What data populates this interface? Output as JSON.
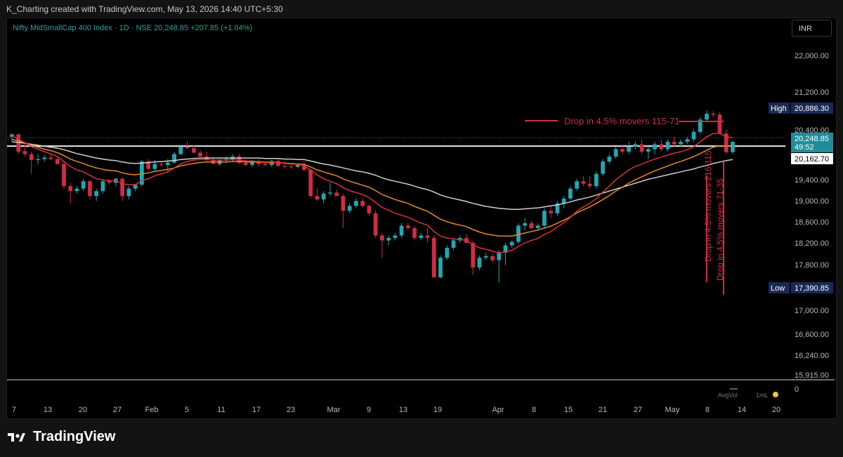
{
  "header": {
    "text": "K_Charting created with TradingView.com, May 13, 2026 14:40 UTC+5:30"
  },
  "symbol_line": "Nifty MidSmallCap 400 Index · 1D · NSE  20,248.85  +207.85 (+1.04%)",
  "currency": "INR",
  "brand": "TradingView",
  "colors": {
    "up": "#22a7b4",
    "down": "#d12c45",
    "background": "#000000",
    "ema_fast": "#d9303c",
    "ema_mid": "#e08a2b",
    "ema_slow": "#cfcfcf",
    "annotation": "#d12c45"
  },
  "chart_data": {
    "type": "candlestick",
    "y_ticks": [
      "22,000.00",
      "21,200.00",
      "20,400.00",
      "19,400.00",
      "19,000.00",
      "18,600.00",
      "18,200.00",
      "17,800.00",
      "17,000.00",
      "16,600.00",
      "16,240.00",
      "15,915.00"
    ],
    "x_ticks": [
      "7",
      "13",
      "20",
      "27",
      "Feb",
      "5",
      "11",
      "17",
      "23",
      "Mar",
      "9",
      "13",
      "19",
      "Apr",
      "8",
      "15",
      "21",
      "27",
      "May",
      "8",
      "14",
      "20"
    ],
    "month_ticks": [
      "Feb",
      "Mar",
      "Apr",
      "May"
    ],
    "volume_pane": {
      "avgvol_label": "AvgVol ·",
      "value_label": "1mL",
      "zero_label": "0"
    },
    "price_labels": [
      {
        "name": "high",
        "tag": "High",
        "value": "20,886.30",
        "style": "navy"
      },
      {
        "name": "last",
        "tag": "",
        "value": "20,248.85",
        "sub": "49:52",
        "style": "teal"
      },
      {
        "name": "level",
        "tag": "",
        "value": "20,162.70",
        "style": "white"
      },
      {
        "name": "low",
        "tag": "Low",
        "value": "17,390.85",
        "style": "navy"
      }
    ],
    "horizontal_level": 20162.7,
    "annotations": [
      {
        "text": "Drop in 4.5% movers 115-71"
      },
      {
        "text": "Drop in 4.5% movers 216-115"
      },
      {
        "text": "Drop in 4.5% movers 71-35"
      }
    ],
    "candles": [
      {
        "o": 20350,
        "h": 20420,
        "l": 20250,
        "c": 20400
      },
      {
        "o": 20400,
        "h": 20420,
        "l": 20000,
        "c": 20050
      },
      {
        "o": 20060,
        "h": 20200,
        "l": 19950,
        "c": 20000
      },
      {
        "o": 20000,
        "h": 20050,
        "l": 19600,
        "c": 19880
      },
      {
        "o": 19880,
        "h": 20000,
        "l": 19800,
        "c": 19900
      },
      {
        "o": 19900,
        "h": 19980,
        "l": 19850,
        "c": 19930
      },
      {
        "o": 19930,
        "h": 20000,
        "l": 19880,
        "c": 19900
      },
      {
        "o": 19900,
        "h": 19950,
        "l": 19780,
        "c": 19800
      },
      {
        "o": 19800,
        "h": 19850,
        "l": 19300,
        "c": 19350
      },
      {
        "o": 19350,
        "h": 19420,
        "l": 19000,
        "c": 19250
      },
      {
        "o": 19250,
        "h": 19350,
        "l": 19200,
        "c": 19300
      },
      {
        "o": 19300,
        "h": 19500,
        "l": 19250,
        "c": 19450
      },
      {
        "o": 19450,
        "h": 19480,
        "l": 19100,
        "c": 19150
      },
      {
        "o": 19150,
        "h": 19300,
        "l": 19050,
        "c": 19250
      },
      {
        "o": 19250,
        "h": 19480,
        "l": 19200,
        "c": 19450
      },
      {
        "o": 19450,
        "h": 19500,
        "l": 19380,
        "c": 19420
      },
      {
        "o": 19420,
        "h": 19520,
        "l": 19350,
        "c": 19500
      },
      {
        "o": 19500,
        "h": 19530,
        "l": 19050,
        "c": 19150
      },
      {
        "o": 19150,
        "h": 19350,
        "l": 19080,
        "c": 19300
      },
      {
        "o": 19300,
        "h": 19400,
        "l": 19250,
        "c": 19380
      },
      {
        "o": 19380,
        "h": 19880,
        "l": 19350,
        "c": 19850
      },
      {
        "o": 19850,
        "h": 19900,
        "l": 19680,
        "c": 19700
      },
      {
        "o": 19700,
        "h": 19880,
        "l": 19650,
        "c": 19800
      },
      {
        "o": 19800,
        "h": 19850,
        "l": 19750,
        "c": 19780
      },
      {
        "o": 19780,
        "h": 19900,
        "l": 19620,
        "c": 19830
      },
      {
        "o": 19830,
        "h": 20050,
        "l": 19800,
        "c": 20000
      },
      {
        "o": 20000,
        "h": 20180,
        "l": 19980,
        "c": 20150
      },
      {
        "o": 20150,
        "h": 20250,
        "l": 20100,
        "c": 20120
      },
      {
        "o": 20120,
        "h": 20180,
        "l": 20000,
        "c": 20030
      },
      {
        "o": 20030,
        "h": 20080,
        "l": 19950,
        "c": 19950
      },
      {
        "o": 19950,
        "h": 20050,
        "l": 19850,
        "c": 19880
      },
      {
        "o": 19880,
        "h": 19950,
        "l": 19800,
        "c": 19800
      },
      {
        "o": 19800,
        "h": 19900,
        "l": 19760,
        "c": 19870
      },
      {
        "o": 19870,
        "h": 19950,
        "l": 19820,
        "c": 19900
      },
      {
        "o": 19900,
        "h": 20000,
        "l": 19850,
        "c": 19950
      },
      {
        "o": 19950,
        "h": 20000,
        "l": 19800,
        "c": 19820
      },
      {
        "o": 19820,
        "h": 19900,
        "l": 19750,
        "c": 19780
      },
      {
        "o": 19780,
        "h": 19880,
        "l": 19740,
        "c": 19850
      },
      {
        "o": 19850,
        "h": 19900,
        "l": 19750,
        "c": 19800
      },
      {
        "o": 19800,
        "h": 19830,
        "l": 19750,
        "c": 19780
      },
      {
        "o": 19780,
        "h": 19880,
        "l": 19740,
        "c": 19860
      },
      {
        "o": 19860,
        "h": 19900,
        "l": 19740,
        "c": 19760
      },
      {
        "o": 19760,
        "h": 19800,
        "l": 19700,
        "c": 19750
      },
      {
        "o": 19750,
        "h": 19780,
        "l": 19700,
        "c": 19740
      },
      {
        "o": 19740,
        "h": 19800,
        "l": 19720,
        "c": 19780
      },
      {
        "o": 19780,
        "h": 19850,
        "l": 19650,
        "c": 19680
      },
      {
        "o": 19680,
        "h": 19700,
        "l": 19100,
        "c": 19150
      },
      {
        "o": 19150,
        "h": 19300,
        "l": 19050,
        "c": 19080
      },
      {
        "o": 19080,
        "h": 19250,
        "l": 19000,
        "c": 19200
      },
      {
        "o": 19200,
        "h": 19420,
        "l": 19150,
        "c": 19220
      },
      {
        "o": 19220,
        "h": 19280,
        "l": 19150,
        "c": 19150
      },
      {
        "o": 19150,
        "h": 19200,
        "l": 18500,
        "c": 18850
      },
      {
        "o": 18850,
        "h": 19000,
        "l": 18800,
        "c": 18950
      },
      {
        "o": 18950,
        "h": 19100,
        "l": 18900,
        "c": 19050
      },
      {
        "o": 19050,
        "h": 19100,
        "l": 18920,
        "c": 18950
      },
      {
        "o": 18950,
        "h": 18980,
        "l": 18750,
        "c": 18800
      },
      {
        "o": 18800,
        "h": 18860,
        "l": 18300,
        "c": 18350
      },
      {
        "o": 18350,
        "h": 18400,
        "l": 17900,
        "c": 18250
      },
      {
        "o": 18250,
        "h": 18350,
        "l": 18150,
        "c": 18300
      },
      {
        "o": 18300,
        "h": 18400,
        "l": 18250,
        "c": 18350
      },
      {
        "o": 18350,
        "h": 18600,
        "l": 18300,
        "c": 18550
      },
      {
        "o": 18550,
        "h": 18600,
        "l": 18450,
        "c": 18500
      },
      {
        "o": 18500,
        "h": 18550,
        "l": 18250,
        "c": 18300
      },
      {
        "o": 18300,
        "h": 18400,
        "l": 18250,
        "c": 18350
      },
      {
        "o": 18350,
        "h": 18500,
        "l": 18200,
        "c": 18300
      },
      {
        "o": 18300,
        "h": 18350,
        "l": 17500,
        "c": 17500
      },
      {
        "o": 17500,
        "h": 17950,
        "l": 17480,
        "c": 17900
      },
      {
        "o": 17900,
        "h": 18150,
        "l": 17850,
        "c": 18100
      },
      {
        "o": 18100,
        "h": 18300,
        "l": 18050,
        "c": 18250
      },
      {
        "o": 18250,
        "h": 18350,
        "l": 18200,
        "c": 18300
      },
      {
        "o": 18300,
        "h": 18380,
        "l": 18180,
        "c": 18200
      },
      {
        "o": 18200,
        "h": 18250,
        "l": 17550,
        "c": 17700
      },
      {
        "o": 17700,
        "h": 17950,
        "l": 17650,
        "c": 17900
      },
      {
        "o": 17900,
        "h": 18000,
        "l": 17850,
        "c": 17930
      },
      {
        "o": 17930,
        "h": 17970,
        "l": 17800,
        "c": 17850
      },
      {
        "o": 17850,
        "h": 18050,
        "l": 17390,
        "c": 18000
      },
      {
        "o": 18000,
        "h": 18200,
        "l": 17750,
        "c": 18150
      },
      {
        "o": 18150,
        "h": 18250,
        "l": 18100,
        "c": 18220
      },
      {
        "o": 18220,
        "h": 18600,
        "l": 18180,
        "c": 18550
      },
      {
        "o": 18550,
        "h": 18700,
        "l": 18450,
        "c": 18600
      },
      {
        "o": 18600,
        "h": 18650,
        "l": 18480,
        "c": 18500
      },
      {
        "o": 18500,
        "h": 18600,
        "l": 18450,
        "c": 18550
      },
      {
        "o": 18550,
        "h": 18900,
        "l": 18500,
        "c": 18850
      },
      {
        "o": 18850,
        "h": 18950,
        "l": 18700,
        "c": 18800
      },
      {
        "o": 18800,
        "h": 19050,
        "l": 18750,
        "c": 19000
      },
      {
        "o": 19000,
        "h": 19150,
        "l": 18900,
        "c": 19100
      },
      {
        "o": 19100,
        "h": 19350,
        "l": 19050,
        "c": 19300
      },
      {
        "o": 19300,
        "h": 19500,
        "l": 19250,
        "c": 19450
      },
      {
        "o": 19450,
        "h": 19550,
        "l": 19350,
        "c": 19400
      },
      {
        "o": 19400,
        "h": 19550,
        "l": 19300,
        "c": 19350
      },
      {
        "o": 19350,
        "h": 19650,
        "l": 19300,
        "c": 19600
      },
      {
        "o": 19600,
        "h": 19900,
        "l": 19550,
        "c": 19850
      },
      {
        "o": 19850,
        "h": 20000,
        "l": 19800,
        "c": 19950
      },
      {
        "o": 19950,
        "h": 20150,
        "l": 19900,
        "c": 20100
      },
      {
        "o": 20100,
        "h": 20200,
        "l": 20000,
        "c": 20050
      },
      {
        "o": 20050,
        "h": 20250,
        "l": 20000,
        "c": 20150
      },
      {
        "o": 20150,
        "h": 20250,
        "l": 20100,
        "c": 20200
      },
      {
        "o": 20200,
        "h": 20300,
        "l": 20000,
        "c": 20050
      },
      {
        "o": 20050,
        "h": 20150,
        "l": 19900,
        "c": 20100
      },
      {
        "o": 20100,
        "h": 20250,
        "l": 20000,
        "c": 20200
      },
      {
        "o": 20200,
        "h": 20300,
        "l": 20050,
        "c": 20100
      },
      {
        "o": 20100,
        "h": 20300,
        "l": 20050,
        "c": 20250
      },
      {
        "o": 20250,
        "h": 20350,
        "l": 20150,
        "c": 20200
      },
      {
        "o": 20200,
        "h": 20300,
        "l": 20150,
        "c": 20250
      },
      {
        "o": 20250,
        "h": 20350,
        "l": 20200,
        "c": 20300
      },
      {
        "o": 20300,
        "h": 20500,
        "l": 20250,
        "c": 20450
      },
      {
        "o": 20450,
        "h": 20750,
        "l": 20400,
        "c": 20700
      },
      {
        "o": 20700,
        "h": 20886,
        "l": 20650,
        "c": 20820
      },
      {
        "o": 20820,
        "h": 20870,
        "l": 20750,
        "c": 20800
      },
      {
        "o": 20800,
        "h": 20850,
        "l": 20400,
        "c": 20420
      },
      {
        "o": 20420,
        "h": 20500,
        "l": 20000,
        "c": 20041
      },
      {
        "o": 20041,
        "h": 20280,
        "l": 20000,
        "c": 20249
      }
    ],
    "ema_fast": [
      20370,
      20300,
      20230,
      20150,
      20100,
      20050,
      20000,
      19950,
      19850,
      19750,
      19680,
      19640,
      19570,
      19500,
      19480,
      19460,
      19460,
      19400,
      19380,
      19380,
      19460,
      19500,
      19560,
      19600,
      19640,
      19720,
      19800,
      19850,
      19880,
      19890,
      19890,
      19880,
      19880,
      19880,
      19890,
      19880,
      19860,
      19860,
      19850,
      19840,
      19840,
      19830,
      19810,
      19800,
      19790,
      19770,
      19670,
      19580,
      19500,
      19450,
      19400,
      19320,
      19260,
      19220,
      19180,
      19120,
      19020,
      18920,
      18860,
      18800,
      18760,
      18720,
      18660,
      18600,
      18560,
      18430,
      18340,
      18300,
      18280,
      18270,
      18250,
      18160,
      18100,
      18070,
      18030,
      18000,
      18020,
      18050,
      18130,
      18200,
      18250,
      18290,
      18370,
      18430,
      18520,
      18610,
      18720,
      18840,
      18930,
      19000,
      19100,
      19230,
      19350,
      19480,
      19580,
      19680,
      19750,
      19800,
      19850,
      19900,
      19940,
      19980,
      20020,
      20050,
      20090,
      20150,
      20250,
      20350,
      20420,
      20420,
      20350,
      20330
    ],
    "ema_mid": [
      20300,
      20270,
      20230,
      20180,
      20140,
      20100,
      20070,
      20030,
      19970,
      19900,
      19850,
      19810,
      19760,
      19720,
      19690,
      19670,
      19660,
      19620,
      19590,
      19580,
      19600,
      19620,
      19650,
      19670,
      19690,
      19720,
      19760,
      19790,
      19810,
      19830,
      19840,
      19840,
      19840,
      19840,
      19850,
      19850,
      19840,
      19840,
      19840,
      19830,
      19830,
      19830,
      19820,
      19810,
      19800,
      19790,
      19740,
      19680,
      19640,
      19600,
      19560,
      19500,
      19450,
      19410,
      19370,
      19330,
      19260,
      19180,
      19130,
      19080,
      19040,
      19000,
      18940,
      18890,
      18840,
      18760,
      18680,
      18630,
      18590,
      18560,
      18530,
      18470,
      18420,
      18380,
      18360,
      18340,
      18340,
      18340,
      18370,
      18400,
      18430,
      18460,
      18500,
      18540,
      18600,
      18660,
      18730,
      18810,
      18870,
      18930,
      19000,
      19080,
      19160,
      19250,
      19330,
      19410,
      19480,
      19540,
      19600,
      19660,
      19710,
      19760,
      19810,
      19850,
      19900,
      19950,
      20010,
      20080,
      20140,
      20170,
      20160,
      20165
    ],
    "ema_slow": [
      20250,
      20240,
      20220,
      20200,
      20180,
      20160,
      20140,
      20120,
      20090,
      20050,
      20010,
      19980,
      19950,
      19920,
      19900,
      19880,
      19870,
      19840,
      19820,
      19810,
      19820,
      19830,
      19840,
      19850,
      19860,
      19870,
      19890,
      19900,
      19910,
      19920,
      19920,
      19920,
      19920,
      19920,
      19920,
      19920,
      19920,
      19920,
      19920,
      19910,
      19910,
      19910,
      19900,
      19900,
      19890,
      19890,
      19860,
      19830,
      19800,
      19780,
      19750,
      19720,
      19690,
      19660,
      19640,
      19610,
      19570,
      19520,
      19480,
      19450,
      19420,
      19390,
      19350,
      19310,
      19280,
      19230,
      19170,
      19130,
      19100,
      19070,
      19040,
      19000,
      18970,
      18940,
      18920,
      18900,
      18890,
      18880,
      18880,
      18890,
      18900,
      18910,
      18930,
      18950,
      18970,
      19000,
      19030,
      19070,
      19100,
      19130,
      19170,
      19210,
      19250,
      19290,
      19330,
      19370,
      19410,
      19450,
      19490,
      19520,
      19550,
      19580,
      19610,
      19640,
      19670,
      19700,
      19740,
      19770,
      19810,
      19840,
      19870,
      19890
    ]
  }
}
